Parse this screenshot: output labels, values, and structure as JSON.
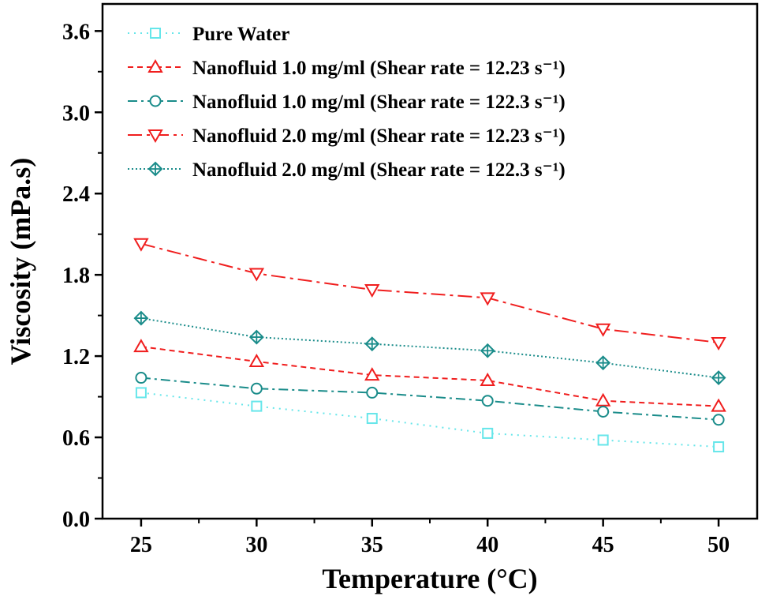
{
  "chart_data": {
    "type": "line",
    "title": "",
    "xlabel": "Temperature (°C)",
    "ylabel": "Viscosity (mPa.s)",
    "x": [
      25,
      30,
      35,
      40,
      45,
      50
    ],
    "xticks": [
      "25",
      "30",
      "35",
      "40",
      "45",
      "50"
    ],
    "yticks": [
      "0.0",
      "0.6",
      "1.2",
      "1.8",
      "2.4",
      "3.0",
      "3.6"
    ],
    "xlim": [
      23.33,
      51.67
    ],
    "ylim": [
      0,
      3.8
    ],
    "grid": false,
    "legend_placement": "top-left",
    "series": [
      {
        "name": "Pure Water",
        "color": "#66e6ea",
        "marker": "square",
        "dash": "dot",
        "values": [
          0.93,
          0.83,
          0.74,
          0.63,
          0.58,
          0.53
        ]
      },
      {
        "name": "Nanofluid 1.0 mg/ml (Shear rate = 12.23 s⁻¹)",
        "color": "#f01e1e",
        "marker": "triangle-up",
        "dash": "dash",
        "values": [
          1.27,
          1.16,
          1.06,
          1.02,
          0.87,
          0.83
        ]
      },
      {
        "name": "Nanofluid 1.0 mg/ml (Shear rate = 122.3 s⁻¹)",
        "color": "#1a8c8a",
        "marker": "circle",
        "dash": "dashdot",
        "values": [
          1.04,
          0.96,
          0.93,
          0.87,
          0.79,
          0.73
        ]
      },
      {
        "name": "Nanofluid 2.0 mg/ml (Shear rate = 12.23 s⁻¹)",
        "color": "#f01e1e",
        "marker": "triangle-down",
        "dash": "longdashdot",
        "values": [
          2.03,
          1.81,
          1.69,
          1.63,
          1.4,
          1.3
        ]
      },
      {
        "name": "Nanofluid 2.0 mg/ml (Shear rate = 122.3 s⁻¹)",
        "color": "#1a8c8a",
        "marker": "crossed-diamond",
        "dash": "densedot",
        "values": [
          1.48,
          1.34,
          1.29,
          1.24,
          1.15,
          1.04
        ]
      }
    ]
  }
}
